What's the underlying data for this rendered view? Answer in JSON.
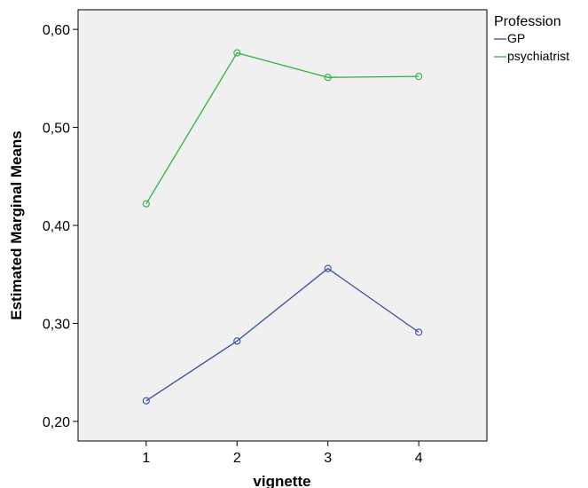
{
  "chart_data": {
    "type": "line",
    "title": "",
    "xlabel": "vignette",
    "ylabel": "Estimated Marginal Means",
    "x": [
      1,
      2,
      3,
      4
    ],
    "x_tick_labels": [
      "1",
      "2",
      "3",
      "4"
    ],
    "xlim": [
      0.25,
      4.75
    ],
    "ylim": [
      0.18,
      0.62
    ],
    "y_ticks": [
      0.2,
      0.3,
      0.4,
      0.5,
      0.6
    ],
    "y_tick_labels": [
      "0,20",
      "0,30",
      "0,40",
      "0,50",
      "0,60"
    ],
    "grid": false,
    "plot_background": "#f0f0f0",
    "marker": "open-circle",
    "legend": {
      "title": "Profession",
      "placement": "outside-right-top"
    },
    "series": [
      {
        "name": "GP",
        "color": "#3a4ea0",
        "values": [
          0.221,
          0.282,
          0.356,
          0.291
        ]
      },
      {
        "name": "psychiatrist",
        "color": "#2bb33d",
        "values": [
          0.422,
          0.576,
          0.551,
          0.552
        ]
      }
    ]
  }
}
